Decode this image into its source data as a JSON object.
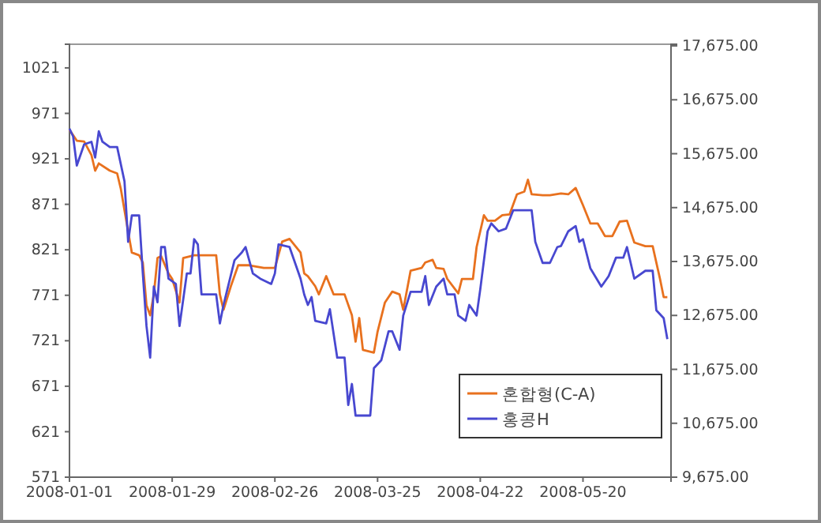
{
  "chart_data": {
    "type": "line",
    "xlim": [
      "2008-01-01",
      "2008-06-13"
    ],
    "xticks": [
      "2008-01-01",
      "2008-01-29",
      "2008-02-26",
      "2008-03-25",
      "2008-04-22",
      "2008-05-20"
    ],
    "ylim": [
      571,
      1047
    ],
    "yticks": [
      571,
      621,
      671,
      721,
      771,
      821,
      871,
      921,
      971,
      1021
    ],
    "y2lim": [
      9675,
      17705
    ],
    "y2ticks": [
      {
        "value": 9675,
        "label": "9,675.00"
      },
      {
        "value": 10675,
        "label": "10,675.00"
      },
      {
        "value": 11675,
        "label": "11,675.00"
      },
      {
        "value": 12675,
        "label": "12,675.00"
      },
      {
        "value": 13675,
        "label": "13,675.00"
      },
      {
        "value": 14675,
        "label": "14,675.00"
      },
      {
        "value": 15675,
        "label": "15,675.00"
      },
      {
        "value": 16675,
        "label": "16,675.00"
      },
      {
        "value": 17675,
        "label": "17,675.00"
      }
    ],
    "legend": "bottom right",
    "grid": false,
    "marker": "none",
    "line_style": "solid",
    "series": [
      {
        "name": "혼합형(C-A)",
        "color": "#e8711e",
        "x": [
          "2008-01-01",
          "2008-01-03",
          "2008-01-05",
          "2008-01-07",
          "2008-01-08",
          "2008-01-09",
          "2008-01-12",
          "2008-01-14",
          "2008-01-15",
          "2008-01-17",
          "2008-01-18",
          "2008-01-20",
          "2008-01-21",
          "2008-01-22",
          "2008-01-23",
          "2008-01-24",
          "2008-01-25",
          "2008-01-26",
          "2008-01-28",
          "2008-01-29",
          "2008-01-31",
          "2008-02-01",
          "2008-02-04",
          "2008-02-10",
          "2008-02-11",
          "2008-02-12",
          "2008-02-14",
          "2008-02-16",
          "2008-02-19",
          "2008-02-23",
          "2008-02-26",
          "2008-02-28",
          "2008-03-01",
          "2008-03-04",
          "2008-03-05",
          "2008-03-06",
          "2008-03-08",
          "2008-03-09",
          "2008-03-11",
          "2008-03-13",
          "2008-03-16",
          "2008-03-18",
          "2008-03-19",
          "2008-03-20",
          "2008-03-21",
          "2008-03-24",
          "2008-03-25",
          "2008-03-27",
          "2008-03-29",
          "2008-03-31",
          "2008-04-01",
          "2008-04-03",
          "2008-04-06",
          "2008-04-07",
          "2008-04-09",
          "2008-04-10",
          "2008-04-12",
          "2008-04-13",
          "2008-04-16",
          "2008-04-17",
          "2008-04-20",
          "2008-04-21",
          "2008-04-23",
          "2008-04-24",
          "2008-04-26",
          "2008-04-28",
          "2008-04-30",
          "2008-05-02",
          "2008-05-04",
          "2008-05-05",
          "2008-05-06",
          "2008-05-09",
          "2008-05-11",
          "2008-05-14",
          "2008-05-16",
          "2008-05-18",
          "2008-05-20",
          "2008-05-22",
          "2008-05-24",
          "2008-05-26",
          "2008-05-28",
          "2008-05-30",
          "2008-06-01",
          "2008-06-03",
          "2008-06-06",
          "2008-06-08",
          "2008-06-10",
          "2008-06-11",
          "2008-06-12"
        ],
        "values": [
          953,
          941,
          940,
          925,
          908,
          916,
          908,
          905,
          888,
          841,
          818,
          815,
          807,
          760,
          749,
          772,
          812,
          814,
          795,
          789,
          763,
          812,
          815,
          815,
          772,
          755,
          781,
          804,
          804,
          801,
          801,
          830,
          833,
          818,
          795,
          792,
          781,
          772,
          792,
          772,
          772,
          749,
          720,
          746,
          711,
          708,
          731,
          763,
          775,
          772,
          755,
          798,
          801,
          807,
          810,
          801,
          800,
          789,
          773,
          789,
          789,
          824,
          859,
          853,
          853,
          859,
          860,
          882,
          885,
          898,
          882,
          881,
          881,
          883,
          882,
          889,
          870,
          850,
          850,
          836,
          836,
          852,
          853,
          829,
          825,
          825,
          789,
          769,
          769
        ]
      },
      {
        "name": "홍콩H",
        "color": "#4848d0",
        "axis": "y2",
        "x": [
          "2008-01-01",
          "2008-01-02",
          "2008-01-03",
          "2008-01-05",
          "2008-01-07",
          "2008-01-08",
          "2008-01-09",
          "2008-01-10",
          "2008-01-12",
          "2008-01-14",
          "2008-01-16",
          "2008-01-17",
          "2008-01-18",
          "2008-01-20",
          "2008-01-21",
          "2008-01-22",
          "2008-01-23",
          "2008-01-24",
          "2008-01-25",
          "2008-01-26",
          "2008-01-27",
          "2008-01-28",
          "2008-01-30",
          "2008-01-31",
          "2008-02-02",
          "2008-02-03",
          "2008-02-04",
          "2008-02-05",
          "2008-02-06",
          "2008-02-10",
          "2008-02-11",
          "2008-02-12",
          "2008-02-15",
          "2008-02-17",
          "2008-02-18",
          "2008-02-19",
          "2008-02-20",
          "2008-02-22",
          "2008-02-25",
          "2008-02-26",
          "2008-02-27",
          "2008-03-01",
          "2008-03-04",
          "2008-03-05",
          "2008-03-06",
          "2008-03-07",
          "2008-03-08",
          "2008-03-11",
          "2008-03-12",
          "2008-03-14",
          "2008-03-16",
          "2008-03-17",
          "2008-03-18",
          "2008-03-19",
          "2008-03-23",
          "2008-03-24",
          "2008-03-26",
          "2008-03-28",
          "2008-03-29",
          "2008-03-31",
          "2008-04-01",
          "2008-04-03",
          "2008-04-06",
          "2008-04-07",
          "2008-04-08",
          "2008-04-10",
          "2008-04-12",
          "2008-04-13",
          "2008-04-15",
          "2008-04-16",
          "2008-04-18",
          "2008-04-19",
          "2008-04-21",
          "2008-04-22",
          "2008-04-24",
          "2008-04-25",
          "2008-04-27",
          "2008-04-29",
          "2008-05-01",
          "2008-05-06",
          "2008-05-07",
          "2008-05-09",
          "2008-05-11",
          "2008-05-13",
          "2008-05-14",
          "2008-05-16",
          "2008-05-18",
          "2008-05-19",
          "2008-05-20",
          "2008-05-22",
          "2008-05-25",
          "2008-05-27",
          "2008-05-29",
          "2008-05-31",
          "2008-06-01",
          "2008-06-03",
          "2008-06-06",
          "2008-06-08",
          "2008-06-09",
          "2008-06-11",
          "2008-06-12"
        ],
        "values": [
          16140,
          15994,
          15456,
          15847,
          15896,
          15603,
          16091,
          15896,
          15798,
          15798,
          15163,
          14040,
          14529,
          14529,
          13454,
          12478,
          11892,
          13210,
          12918,
          13943,
          13943,
          13357,
          13259,
          12478,
          13454,
          13454,
          14089,
          13992,
          13064,
          13064,
          12527,
          12869,
          13699,
          13845,
          13943,
          13699,
          13454,
          13357,
          13259,
          13454,
          13992,
          13943,
          13357,
          13064,
          12869,
          13015,
          12576,
          12527,
          12791,
          11892,
          11892,
          11013,
          11404,
          10818,
          10818,
          11697,
          11843,
          12380,
          12380,
          12038,
          12673,
          13112,
          13112,
          13405,
          12869,
          13210,
          13357,
          13064,
          13064,
          12673,
          12576,
          12869,
          12673,
          13161,
          14236,
          14382,
          14236,
          14285,
          14627,
          14627,
          14040,
          13650,
          13650,
          13943,
          13962,
          14236,
          14333,
          14040,
          14089,
          13552,
          13210,
          13405,
          13747,
          13747,
          13943,
          13357,
          13503,
          13503,
          12771,
          12624,
          12234
        ]
      }
    ]
  }
}
